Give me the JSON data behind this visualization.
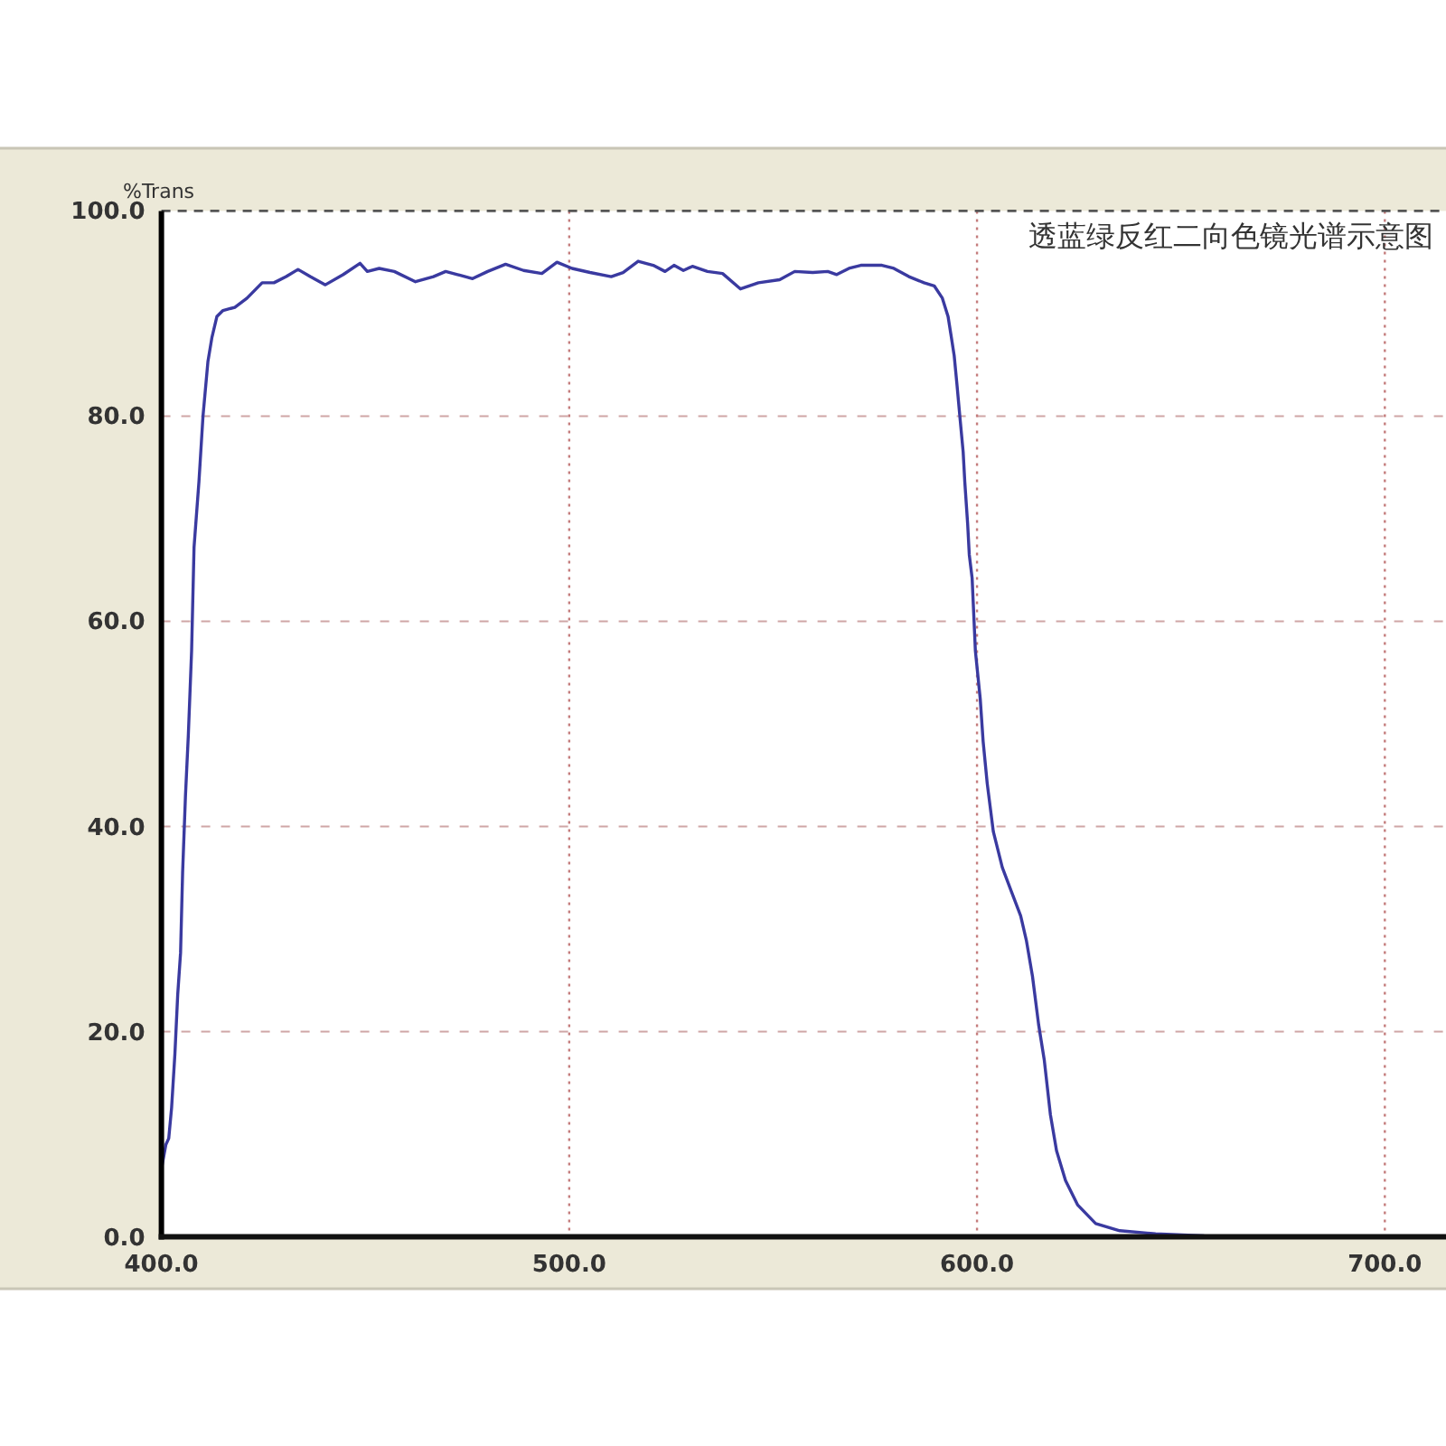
{
  "chart_data": {
    "type": "line",
    "title": "透蓝绿反红二向色镜光谱示意图",
    "ylabel": "%Trans",
    "x": [
      400.0,
      401.1,
      401.8,
      402.5,
      403.3,
      404.0,
      404.7,
      405.2,
      405.9,
      406.6,
      407.4,
      408.0,
      409.2,
      410.2,
      411.4,
      412.4,
      413.6,
      415.1,
      418.0,
      421.0,
      424.7,
      427.6,
      430.6,
      433.5,
      436.5,
      440.2,
      444.6,
      448.7,
      450.5,
      453.4,
      457.1,
      462.3,
      466.7,
      469.7,
      472.6,
      476.3,
      480.0,
      484.4,
      488.8,
      493.3,
      497.0,
      500.7,
      505.1,
      510.3,
      513.2,
      516.9,
      520.6,
      523.5,
      525.7,
      528.0,
      530.2,
      533.9,
      537.6,
      542.0,
      546.4,
      551.6,
      555.3,
      559.7,
      563.4,
      565.6,
      568.6,
      571.5,
      576.7,
      579.6,
      583.3,
      587.0,
      589.5,
      591.5,
      592.9,
      593.7,
      594.4,
      595.1,
      595.9,
      596.6,
      597.0,
      597.7,
      598.1,
      598.8,
      599.6,
      600.8,
      601.5,
      602.5,
      604.0,
      606.2,
      608.4,
      610.7,
      612.1,
      613.6,
      615.1,
      616.5,
      618.0,
      619.5,
      621.7,
      624.7,
      629.1,
      635.0,
      643.8,
      655.7,
      674.8
    ],
    "series": [
      {
        "color": "#3a3aa0",
        "values": [
          6.6,
          9.0,
          9.6,
          12.6,
          17.8,
          23.6,
          27.7,
          35.5,
          43.0,
          48.9,
          57.1,
          67.2,
          73.6,
          80.0,
          85.3,
          87.7,
          89.7,
          90.3,
          90.6,
          91.5,
          93.0,
          93.0,
          93.6,
          94.3,
          93.6,
          92.8,
          93.8,
          94.9,
          94.1,
          94.4,
          94.1,
          93.1,
          93.6,
          94.1,
          93.8,
          93.4,
          94.1,
          94.8,
          94.2,
          93.9,
          95.0,
          94.4,
          94.0,
          93.6,
          94.0,
          95.1,
          94.7,
          94.1,
          94.7,
          94.2,
          94.6,
          94.1,
          93.9,
          92.4,
          93.0,
          93.3,
          94.1,
          94.0,
          94.1,
          93.8,
          94.4,
          94.7,
          94.7,
          94.4,
          93.6,
          93.0,
          92.7,
          91.5,
          89.7,
          87.7,
          85.9,
          83.0,
          79.5,
          76.5,
          73.6,
          69.5,
          66.5,
          64.2,
          57.1,
          52.4,
          48.3,
          44.2,
          39.5,
          36.0,
          33.7,
          31.3,
          28.9,
          25.4,
          20.7,
          17.2,
          11.9,
          8.4,
          5.5,
          3.1,
          1.3,
          0.6,
          0.3,
          0.1,
          0.0
        ]
      }
    ],
    "xlim": [
      400,
      715
    ],
    "ylim": [
      0,
      100
    ],
    "xticks": [
      {
        "value": 400,
        "label": "400.0"
      },
      {
        "value": 500,
        "label": "500.0"
      },
      {
        "value": 600,
        "label": "600.0"
      },
      {
        "value": 700,
        "label": "700.0"
      }
    ],
    "yticks": [
      {
        "value": 0,
        "label": "0.0"
      },
      {
        "value": 20,
        "label": "20.0"
      },
      {
        "value": 40,
        "label": "40.0"
      },
      {
        "value": 60,
        "label": "60.0"
      },
      {
        "value": 80,
        "label": "80.0"
      },
      {
        "value": 100,
        "label": "100.0"
      }
    ],
    "grid": true,
    "line_style": "solid"
  }
}
